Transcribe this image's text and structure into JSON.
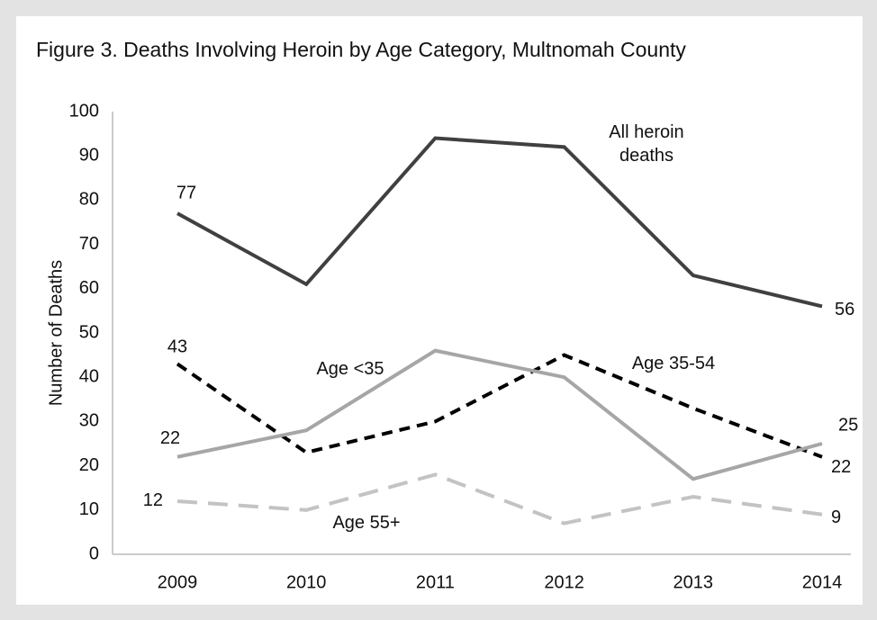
{
  "chart_data": {
    "type": "line",
    "title": "Figure 3. Deaths Involving Heroin by Age Category, Multnomah County",
    "y_label": "Number of Deaths",
    "categories": [
      "2009",
      "2010",
      "2011",
      "2012",
      "2013",
      "2014"
    ],
    "series": [
      {
        "name": "All heroin deaths",
        "color": "#404040",
        "dash": "solid",
        "values": [
          77,
          61,
          94,
          92,
          63,
          56
        ]
      },
      {
        "name": "Age 35-54",
        "color": "#000000",
        "dash": "dashed",
        "values": [
          43,
          23,
          30,
          45,
          33,
          22
        ]
      },
      {
        "name": "Age <35",
        "color": "#a6a6a6",
        "dash": "solid",
        "values": [
          22,
          28,
          46,
          40,
          17,
          25
        ]
      },
      {
        "name": "Age 55+",
        "color": "#c3c3c3",
        "dash": "dashed",
        "values": [
          12,
          10,
          18,
          7,
          13,
          9
        ]
      }
    ],
    "ylim": [
      0,
      100
    ],
    "yticks": [
      0,
      10,
      20,
      30,
      40,
      50,
      60,
      70,
      80,
      90,
      100
    ],
    "grid": false
  }
}
